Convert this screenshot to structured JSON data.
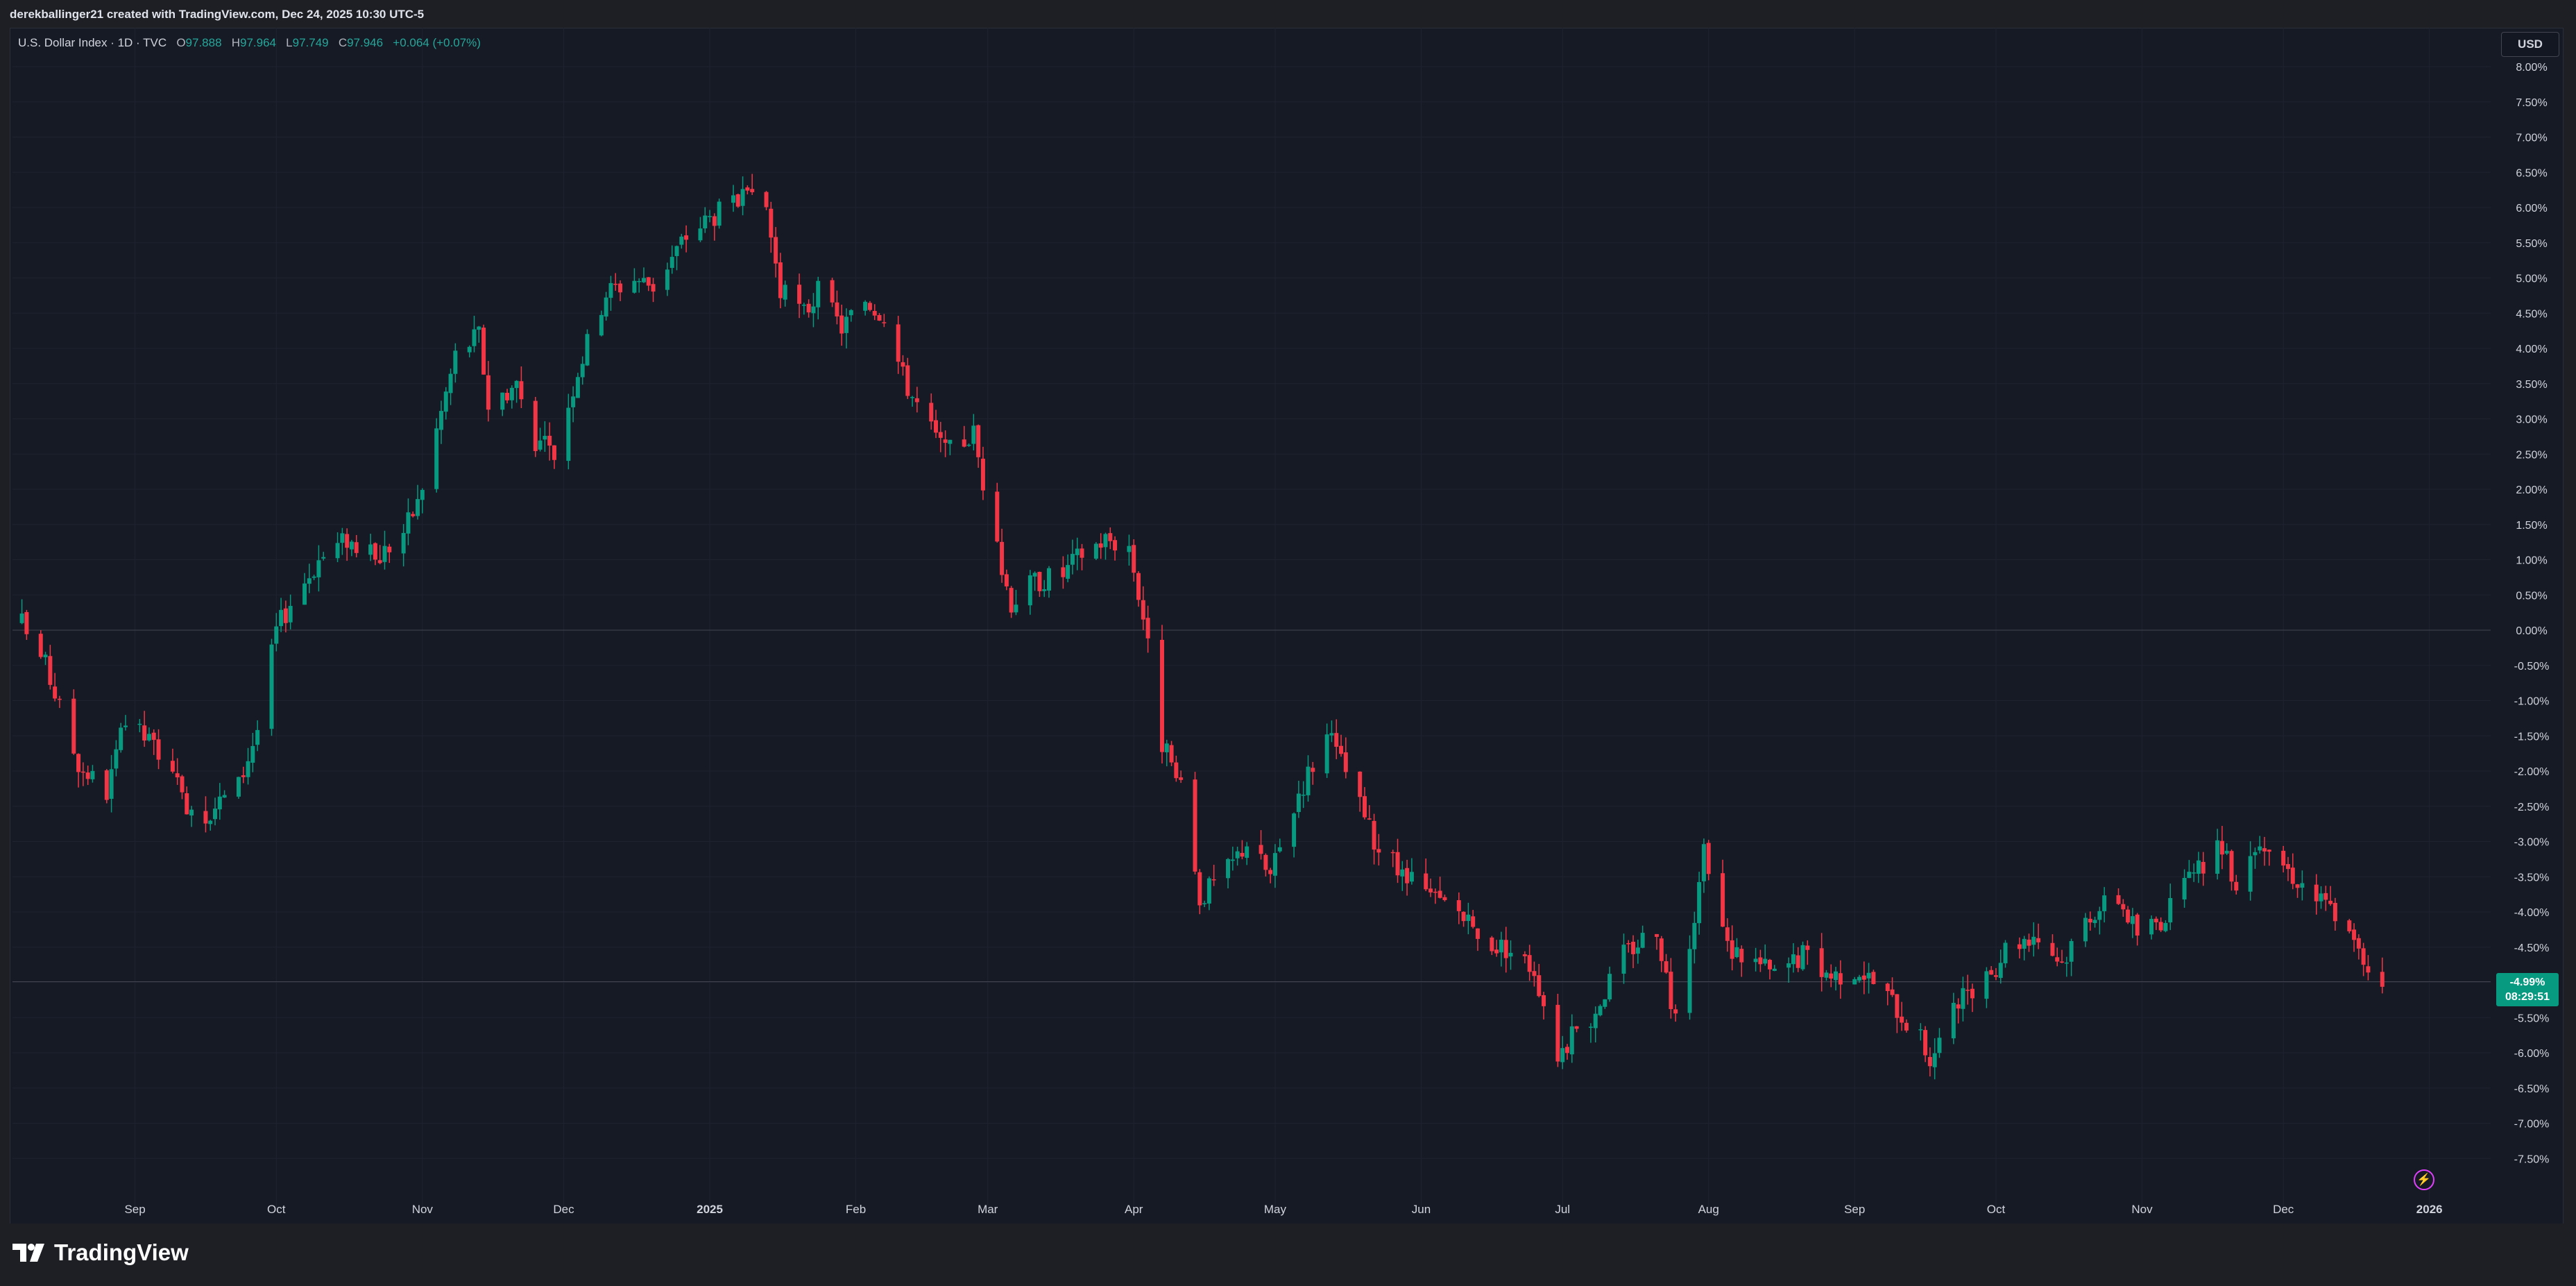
{
  "header": {
    "attribution": "derekballinger21 created with TradingView.com, Dec 24, 2025 10:30 UTC-5"
  },
  "legend": {
    "symbol": "U.S. Dollar Index · 1D · TVC",
    "open_label": "O",
    "open": "97.888",
    "high_label": "H",
    "high": "97.964",
    "low_label": "L",
    "low": "97.749",
    "close_label": "C",
    "close": "97.946",
    "change": "+0.064 (+0.07%)"
  },
  "currency_button": "USD",
  "price_badge": {
    "value": "-4.99%",
    "countdown": "08:29:51"
  },
  "footer": {
    "brand": "TradingView"
  },
  "colors": {
    "up": "#089981",
    "down": "#f23645",
    "background": "#161a25",
    "grid": "#1f2330",
    "text": "#d1d4dc"
  },
  "icons": {
    "brand": "tradingview-logo-icon",
    "alert": "lightning-bolt-icon"
  },
  "chart_data": {
    "type": "candlestick",
    "y_unit": "percent change",
    "ylim": [
      -8.0,
      8.0
    ],
    "y_ticks": [
      "8.00%",
      "7.50%",
      "7.00%",
      "6.50%",
      "6.00%",
      "5.50%",
      "5.00%",
      "4.50%",
      "4.00%",
      "3.50%",
      "3.00%",
      "2.50%",
      "2.00%",
      "1.50%",
      "1.00%",
      "0.50%",
      "0.00%",
      "-0.50%",
      "-1.00%",
      "-1.50%",
      "-2.00%",
      "-2.50%",
      "-3.00%",
      "-3.50%",
      "-4.00%",
      "-4.50%",
      "-5.00%",
      "-5.50%",
      "-6.00%",
      "-6.50%",
      "-7.00%",
      "-7.50%"
    ],
    "x_ticks": [
      "Sep",
      "Oct",
      "Nov",
      "Dec",
      "2025",
      "Feb",
      "Mar",
      "Apr",
      "May",
      "Jun",
      "Jul",
      "Aug",
      "Sep",
      "Oct",
      "Nov",
      "Dec",
      "2026"
    ],
    "x_tick_dates": [
      "2024-09-01",
      "2024-10-01",
      "2024-11-01",
      "2024-12-01",
      "2025-01-01",
      "2025-02-01",
      "2025-03-01",
      "2025-04-01",
      "2025-05-01",
      "2025-06-01",
      "2025-07-01",
      "2025-08-01",
      "2025-09-01",
      "2025-10-01",
      "2025-11-01",
      "2025-12-01",
      "2026-01-01"
    ],
    "x_range": [
      "2024-08-06",
      "2026-01-14"
    ],
    "baseline": 0.0,
    "last_value": -4.99,
    "grid": true,
    "path_dates": [
      "2024-08-08",
      "2024-08-13",
      "2024-08-20",
      "2024-08-26",
      "2024-08-30",
      "2024-09-06",
      "2024-09-11",
      "2024-09-16",
      "2024-09-23",
      "2024-09-27",
      "2024-10-01",
      "2024-10-04",
      "2024-10-10",
      "2024-10-16",
      "2024-10-22",
      "2024-10-28",
      "2024-10-31",
      "2024-11-05",
      "2024-11-08",
      "2024-11-13",
      "2024-11-15",
      "2024-11-21",
      "2024-11-25",
      "2024-11-29",
      "2024-12-04",
      "2024-12-10",
      "2024-12-16",
      "2024-12-20",
      "2024-12-27",
      "2025-01-02",
      "2025-01-08",
      "2025-01-13",
      "2025-01-16",
      "2025-01-21",
      "2025-01-24",
      "2025-01-29",
      "2025-02-03",
      "2025-02-07",
      "2025-02-11",
      "2025-02-14",
      "2025-02-20",
      "2025-02-26",
      "2025-03-03",
      "2025-03-06",
      "2025-03-11",
      "2025-03-17",
      "2025-03-21",
      "2025-03-26",
      "2025-03-31",
      "2025-04-03",
      "2025-04-07",
      "2025-04-11",
      "2025-04-15",
      "2025-04-21",
      "2025-04-25",
      "2025-04-30",
      "2025-05-06",
      "2025-05-12",
      "2025-05-16",
      "2025-05-22",
      "2025-05-28",
      "2025-06-03",
      "2025-06-09",
      "2025-06-13",
      "2025-06-19",
      "2025-06-25",
      "2025-06-30",
      "2025-07-07",
      "2025-07-14",
      "2025-07-21",
      "2025-07-25",
      "2025-07-31",
      "2025-08-05",
      "2025-08-11",
      "2025-08-15",
      "2025-08-21",
      "2025-08-27",
      "2025-09-02",
      "2025-09-08",
      "2025-09-15",
      "2025-09-17",
      "2025-09-23",
      "2025-09-29",
      "2025-10-03",
      "2025-10-09",
      "2025-10-15",
      "2025-10-21",
      "2025-10-27",
      "2025-10-31",
      "2025-11-05",
      "2025-11-11",
      "2025-11-17",
      "2025-11-21",
      "2025-11-26",
      "2025-12-02",
      "2025-12-08",
      "2025-12-12",
      "2025-12-17",
      "2025-12-22"
    ],
    "path_values": [
      0.1,
      -0.5,
      -1.9,
      -2.3,
      -1.3,
      -1.7,
      -2.4,
      -2.6,
      -2.2,
      -1.4,
      0.0,
      0.4,
      1.0,
      1.3,
      1.0,
      1.4,
      1.8,
      3.1,
      3.9,
      4.2,
      3.2,
      3.5,
      2.7,
      2.5,
      3.7,
      4.8,
      5.0,
      4.9,
      5.6,
      5.9,
      6.1,
      6.0,
      4.8,
      4.5,
      4.8,
      4.3,
      4.7,
      4.5,
      3.6,
      3.2,
      2.5,
      2.8,
      1.1,
      0.4,
      0.7,
      0.8,
      1.1,
      1.3,
      1.2,
      0.2,
      -1.6,
      -2.3,
      -3.8,
      -3.4,
      -3.0,
      -3.5,
      -2.3,
      -1.5,
      -2.0,
      -3.0,
      -3.5,
      -3.8,
      -4.0,
      -4.4,
      -4.5,
      -4.8,
      -6.0,
      -5.5,
      -4.6,
      -4.2,
      -5.6,
      -3.2,
      -4.5,
      -4.7,
      -4.9,
      -4.6,
      -4.9,
      -4.8,
      -5.2,
      -5.8,
      -6.1,
      -5.3,
      -5.0,
      -4.5,
      -4.3,
      -4.7,
      -4.0,
      -3.8,
      -4.3,
      -4.1,
      -3.6,
      -3.0,
      -3.6,
      -2.9,
      -3.4,
      -3.8,
      -4.0,
      -4.6,
      -4.99
    ]
  }
}
